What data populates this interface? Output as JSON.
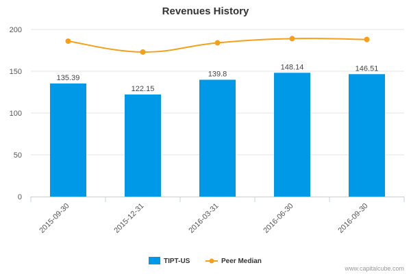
{
  "chart_data": {
    "type": "bar",
    "title": "Revenues History",
    "categories": [
      "2015-09-30",
      "2015-12-31",
      "2016-03-31",
      "2016-06-30",
      "2016-09-30"
    ],
    "series": [
      {
        "name": "TIPT-US",
        "type": "bar",
        "color": "#0099e8",
        "values": [
          135.39,
          122.15,
          139.8,
          148.14,
          146.51
        ],
        "labels": [
          "135.39",
          "122.15",
          "139.8",
          "148.14",
          "146.51"
        ]
      },
      {
        "name": "Peer Median",
        "type": "line",
        "color": "#f5a01a",
        "values": [
          186,
          173,
          184,
          189,
          188
        ]
      }
    ],
    "yticks": [
      "0",
      "50",
      "100",
      "150",
      "200"
    ],
    "ylim": [
      0,
      200
    ],
    "xlabel": "",
    "ylabel": "",
    "legend_position": "bottom-center",
    "credit": "www.capitalcube.com"
  }
}
